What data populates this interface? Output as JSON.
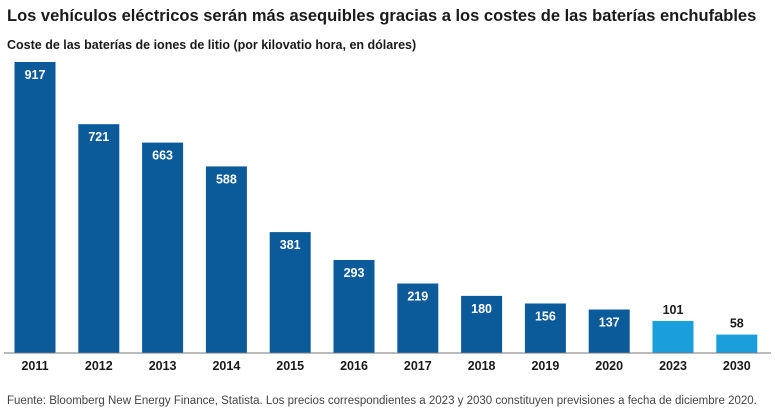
{
  "chart_data": {
    "type": "bar",
    "title": "Los vehículos eléctricos serán más asequibles gracias a los costes de las baterías enchufables",
    "subtitle": "Coste de las baterías de iones de litio (por kilovatio hora, en dólares)",
    "categories": [
      "2011",
      "2012",
      "2013",
      "2014",
      "2015",
      "2016",
      "2017",
      "2018",
      "2019",
      "2020",
      "2023",
      "2030"
    ],
    "values": [
      917,
      721,
      663,
      588,
      381,
      293,
      219,
      180,
      156,
      137,
      101,
      58
    ],
    "forecast": [
      false,
      false,
      false,
      false,
      false,
      false,
      false,
      false,
      false,
      false,
      true,
      true
    ],
    "colors": {
      "actual": "#0b5a9a",
      "forecast": "#1a9fdc"
    },
    "xlabel": "",
    "ylabel": "",
    "ylim": [
      0,
      917
    ],
    "grid": false,
    "legend": "none",
    "source": "Fuente: Bloomberg New Energy Finance, Statista. Los precios correspondientes a 2023 y 2030 constituyen previsiones a fecha de diciembre 2020."
  }
}
